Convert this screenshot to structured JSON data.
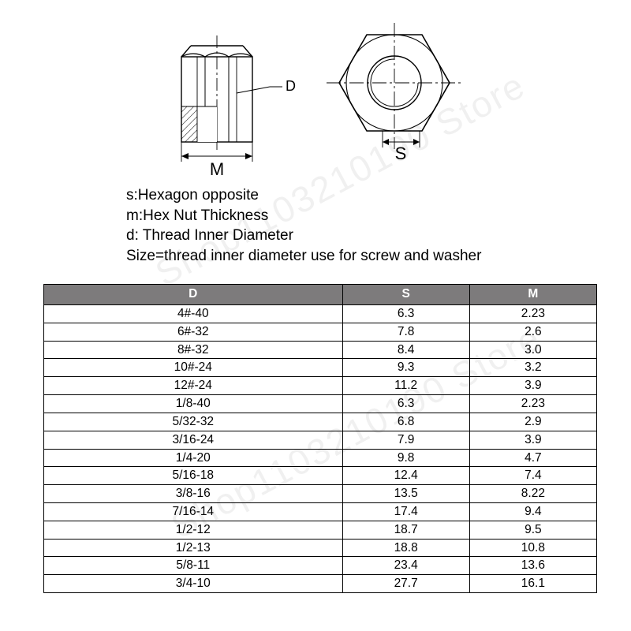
{
  "diagram": {
    "label_m": "M",
    "label_s": "S",
    "label_d": "D"
  },
  "legend": {
    "line1": "s:Hexagon opposite",
    "line2": "m:Hex Nut Thickness",
    "line3": "d: Thread Inner Diameter",
    "line4": "Size=thread inner diameter use for screw and washer"
  },
  "table": {
    "header_bg": "#7d7b7c",
    "header_fg": "#ffffff",
    "columns": [
      "D",
      "S",
      "M"
    ],
    "col_widths_pct": [
      54,
      23,
      23
    ],
    "rows": [
      [
        "4#-40",
        "6.3",
        "2.23"
      ],
      [
        "6#-32",
        "7.8",
        "2.6"
      ],
      [
        "8#-32",
        "8.4",
        "3.0"
      ],
      [
        "10#-24",
        "9.3",
        "3.2"
      ],
      [
        "12#-24",
        "11.2",
        "3.9"
      ],
      [
        "1/8-40",
        "6.3",
        "2.23"
      ],
      [
        "5/32-32",
        "6.8",
        "2.9"
      ],
      [
        "3/16-24",
        "7.9",
        "3.9"
      ],
      [
        "1/4-20",
        "9.8",
        "4.7"
      ],
      [
        "5/16-18",
        "12.4",
        "7.4"
      ],
      [
        "3/8-16",
        "13.5",
        "8.22"
      ],
      [
        "7/16-14",
        "17.4",
        "9.4"
      ],
      [
        "1/2-12",
        "18.7",
        "9.5"
      ],
      [
        "1/2-13",
        "18.8",
        "10.8"
      ],
      [
        "5/8-11",
        "23.4",
        "13.6"
      ],
      [
        "3/4-10",
        "27.7",
        "16.1"
      ]
    ]
  },
  "colors": {
    "line": "#000000",
    "bg": "#ffffff",
    "hatch": "#000000"
  },
  "watermark": {
    "text": "Shop1103210190 Store",
    "opacity": 0.06,
    "rotate_deg": -28
  }
}
